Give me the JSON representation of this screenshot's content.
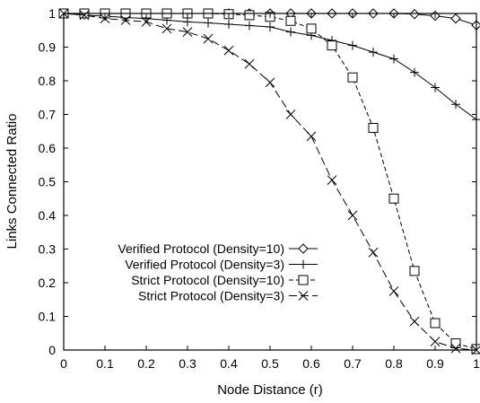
{
  "chart_data": {
    "type": "line",
    "title": "",
    "xlabel": "Node Distance (r)",
    "ylabel": "Links Connected Ratio",
    "xlim": [
      0,
      1
    ],
    "ylim": [
      0,
      1
    ],
    "x_ticks": [
      "0",
      "0.1",
      "0.2",
      "0.3",
      "0.4",
      "0.5",
      "0.6",
      "0.7",
      "0.8",
      "0.9",
      "1"
    ],
    "y_ticks": [
      "0",
      "0.1",
      "0.2",
      "0.3",
      "0.4",
      "0.5",
      "0.6",
      "0.7",
      "0.8",
      "0.9",
      "1"
    ],
    "legend_position": "bottom-left",
    "grid": false,
    "x": [
      0,
      0.05,
      0.1,
      0.15,
      0.2,
      0.25,
      0.3,
      0.35,
      0.4,
      0.45,
      0.5,
      0.55,
      0.6,
      0.65,
      0.7,
      0.75,
      0.8,
      0.85,
      0.9,
      0.95,
      1.0
    ],
    "series": [
      {
        "name": "Verified Protocol (Density=10)",
        "marker": "diamond",
        "dash": "solid",
        "values": [
          1.0,
          1.0,
          1.0,
          1.0,
          1.0,
          1.0,
          1.0,
          1.0,
          1.0,
          1.0,
          1.0,
          1.0,
          1.0,
          1.0,
          1.0,
          1.0,
          1.0,
          0.998,
          0.993,
          0.985,
          0.965
        ]
      },
      {
        "name": "Verified Protocol (Density=3)",
        "marker": "plus",
        "dash": "solid",
        "values": [
          1.0,
          0.995,
          0.992,
          0.988,
          0.985,
          0.98,
          0.975,
          0.972,
          0.968,
          0.964,
          0.96,
          0.945,
          0.935,
          0.92,
          0.905,
          0.885,
          0.865,
          0.825,
          0.78,
          0.73,
          0.685
        ]
      },
      {
        "name": "Strict Protocol (Density=10)",
        "marker": "square",
        "dash": "dashed",
        "values": [
          1.0,
          1.0,
          1.0,
          1.0,
          1.0,
          1.0,
          1.0,
          1.0,
          0.998,
          0.995,
          0.99,
          0.978,
          0.955,
          0.905,
          0.81,
          0.66,
          0.45,
          0.235,
          0.08,
          0.02,
          0.003
        ]
      },
      {
        "name": "Strict Protocol (Density=3)",
        "marker": "x",
        "dash": "longdash",
        "values": [
          1.0,
          0.995,
          0.985,
          0.98,
          0.975,
          0.955,
          0.945,
          0.925,
          0.89,
          0.85,
          0.795,
          0.7,
          0.635,
          0.505,
          0.4,
          0.29,
          0.175,
          0.085,
          0.025,
          0.005,
          0.0
        ]
      }
    ]
  }
}
